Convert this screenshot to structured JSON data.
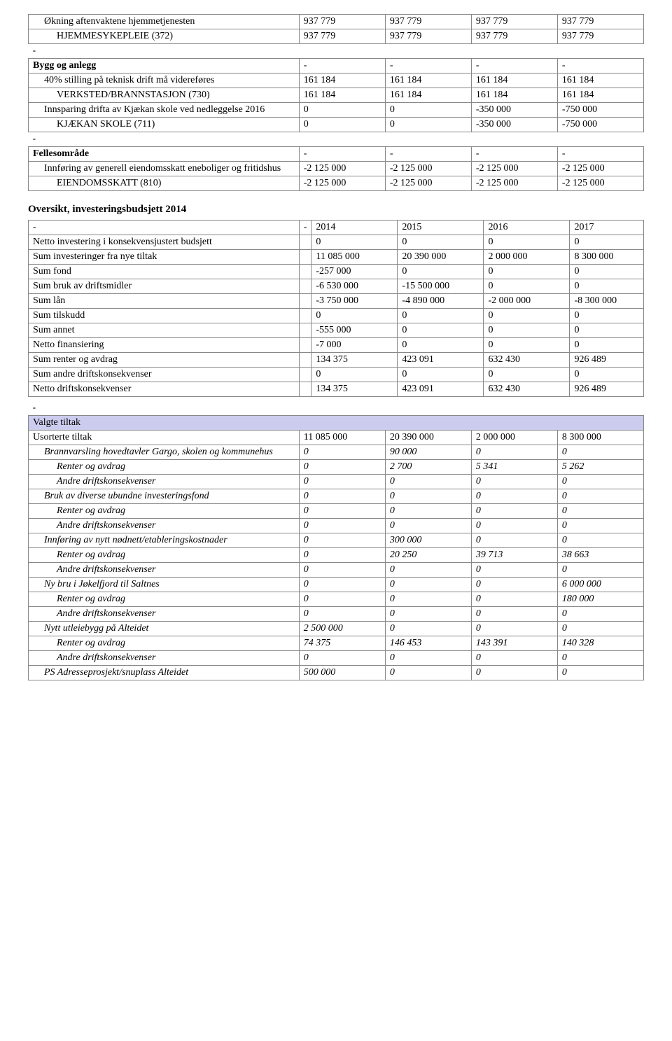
{
  "table1": {
    "rows": [
      {
        "label": "Økning aftenvaktene hjemmetjenesten",
        "indent": 1,
        "vals": [
          "937 779",
          "937 779",
          "937 779",
          "937 779"
        ]
      },
      {
        "label": "HJEMMESYKEPLEIE (372)",
        "indent": 2,
        "vals": [
          "937 779",
          "937 779",
          "937 779",
          "937 779"
        ]
      },
      {
        "label": "-",
        "indent": 0,
        "spacer": true
      },
      {
        "label": "Bygg og anlegg",
        "indent": 0,
        "bold": true,
        "vals": [
          "-",
          "-",
          "-",
          "-"
        ]
      },
      {
        "label": "40% stilling på teknisk drift må videreføres",
        "indent": 1,
        "vals": [
          "161 184",
          "161 184",
          "161 184",
          "161 184"
        ]
      },
      {
        "label": "VERKSTED/BRANNSTASJON (730)",
        "indent": 2,
        "vals": [
          "161 184",
          "161 184",
          "161 184",
          "161 184"
        ]
      },
      {
        "label": "Innsparing drifta av Kjækan skole ved nedleggelse 2016",
        "indent": 1,
        "vals": [
          "0",
          "0",
          "-350 000",
          "-750 000"
        ]
      },
      {
        "label": "KJÆKAN SKOLE (711)",
        "indent": 2,
        "vals": [
          "0",
          "0",
          "-350 000",
          "-750 000"
        ]
      },
      {
        "label": "-",
        "indent": 0,
        "spacer": true
      },
      {
        "label": "Fellesområde",
        "indent": 0,
        "bold": true,
        "vals": [
          "-",
          "-",
          "-",
          "-"
        ]
      },
      {
        "label": "Innføring av generell eiendomsskatt eneboliger og fritidshus",
        "indent": 1,
        "vals": [
          "-2 125 000",
          "-2 125 000",
          "-2 125 000",
          "-2 125 000"
        ]
      },
      {
        "label": "EIENDOMSSKATT (810)",
        "indent": 2,
        "vals": [
          "-2 125 000",
          "-2 125 000",
          "-2 125 000",
          "-2 125 000"
        ]
      }
    ]
  },
  "heading2": "Oversikt, investeringsbudsjett 2014",
  "table2": {
    "header": [
      "-",
      "-",
      "2014",
      "2015",
      "2016",
      "2017"
    ],
    "rows": [
      {
        "label": "Netto investering i konsekvensjustert budsjett",
        "vals": [
          "0",
          "0",
          "0",
          "0"
        ]
      },
      {
        "label": "Sum investeringer fra nye tiltak",
        "vals": [
          "11 085 000",
          "20 390 000",
          "2 000 000",
          "8 300 000"
        ]
      },
      {
        "label": "Sum fond",
        "vals": [
          "-257 000",
          "0",
          "0",
          "0"
        ]
      },
      {
        "label": "Sum bruk av driftsmidler",
        "vals": [
          "-6 530 000",
          "-15 500 000",
          "0",
          "0"
        ]
      },
      {
        "label": "Sum lån",
        "vals": [
          "-3 750 000",
          "-4 890 000",
          "-2 000 000",
          "-8 300 000"
        ]
      },
      {
        "label": "Sum tilskudd",
        "vals": [
          "0",
          "0",
          "0",
          "0"
        ]
      },
      {
        "label": "Sum annet",
        "vals": [
          "-555 000",
          "0",
          "0",
          "0"
        ]
      },
      {
        "label": "Netto finansiering",
        "vals": [
          "-7 000",
          "0",
          "0",
          "0"
        ]
      },
      {
        "label": "Sum renter og avdrag",
        "vals": [
          "134 375",
          "423 091",
          "632 430",
          "926 489"
        ]
      },
      {
        "label": "Sum andre driftskonsekvenser",
        "vals": [
          "0",
          "0",
          "0",
          "0"
        ]
      },
      {
        "label": "Netto driftskonsekvenser",
        "vals": [
          "134 375",
          "423 091",
          "632 430",
          "926 489"
        ]
      }
    ]
  },
  "table3": {
    "rows": [
      {
        "label": "-",
        "indent": 0,
        "spacer": true
      },
      {
        "label": "Valgte tiltak",
        "indent": 0,
        "section": true
      },
      {
        "label": "Usorterte tiltak",
        "indent": 0,
        "vals": [
          "11 085 000",
          "20 390 000",
          "2 000 000",
          "8 300 000"
        ]
      },
      {
        "label": "Brannvarsling hovedtavler Gargo, skolen og kommunehus",
        "indent": 1,
        "italic": true,
        "vals": [
          "0",
          "90 000",
          "0",
          "0"
        ]
      },
      {
        "label": "Renter og avdrag",
        "indent": 2,
        "italic": true,
        "vals": [
          "0",
          "2 700",
          "5 341",
          "5 262"
        ]
      },
      {
        "label": "Andre driftskonsekvenser",
        "indent": 2,
        "italic": true,
        "vals": [
          "0",
          "0",
          "0",
          "0"
        ]
      },
      {
        "label": "Bruk av diverse ubundne investeringsfond",
        "indent": 1,
        "italic": true,
        "vals": [
          "0",
          "0",
          "0",
          "0"
        ]
      },
      {
        "label": "Renter og avdrag",
        "indent": 2,
        "italic": true,
        "vals": [
          "0",
          "0",
          "0",
          "0"
        ]
      },
      {
        "label": "Andre driftskonsekvenser",
        "indent": 2,
        "italic": true,
        "vals": [
          "0",
          "0",
          "0",
          "0"
        ]
      },
      {
        "label": "Innføring av nytt nødnett/etableringskostnader",
        "indent": 1,
        "italic": true,
        "vals": [
          "0",
          "300 000",
          "0",
          "0"
        ]
      },
      {
        "label": "Renter og avdrag",
        "indent": 2,
        "italic": true,
        "vals": [
          "0",
          "20 250",
          "39 713",
          "38 663"
        ]
      },
      {
        "label": "Andre driftskonsekvenser",
        "indent": 2,
        "italic": true,
        "vals": [
          "0",
          "0",
          "0",
          "0"
        ]
      },
      {
        "label": "Ny bru i Jøkelfjord til Saltnes",
        "indent": 1,
        "italic": true,
        "vals": [
          "0",
          "0",
          "0",
          "6 000 000"
        ]
      },
      {
        "label": "Renter og avdrag",
        "indent": 2,
        "italic": true,
        "vals": [
          "0",
          "0",
          "0",
          "180 000"
        ]
      },
      {
        "label": "Andre driftskonsekvenser",
        "indent": 2,
        "italic": true,
        "vals": [
          "0",
          "0",
          "0",
          "0"
        ]
      },
      {
        "label": "Nytt utleiebygg på Alteidet",
        "indent": 1,
        "italic": true,
        "vals": [
          "2 500 000",
          "0",
          "0",
          "0"
        ]
      },
      {
        "label": "Renter og avdrag",
        "indent": 2,
        "italic": true,
        "vals": [
          "74 375",
          "146 453",
          "143 391",
          "140 328"
        ]
      },
      {
        "label": "Andre driftskonsekvenser",
        "indent": 2,
        "italic": true,
        "vals": [
          "0",
          "0",
          "0",
          "0"
        ]
      },
      {
        "label": "PS Adresseprosjekt/snuplass Alteidet",
        "indent": 1,
        "italic": true,
        "vals": [
          "500 000",
          "0",
          "0",
          "0"
        ]
      }
    ]
  }
}
